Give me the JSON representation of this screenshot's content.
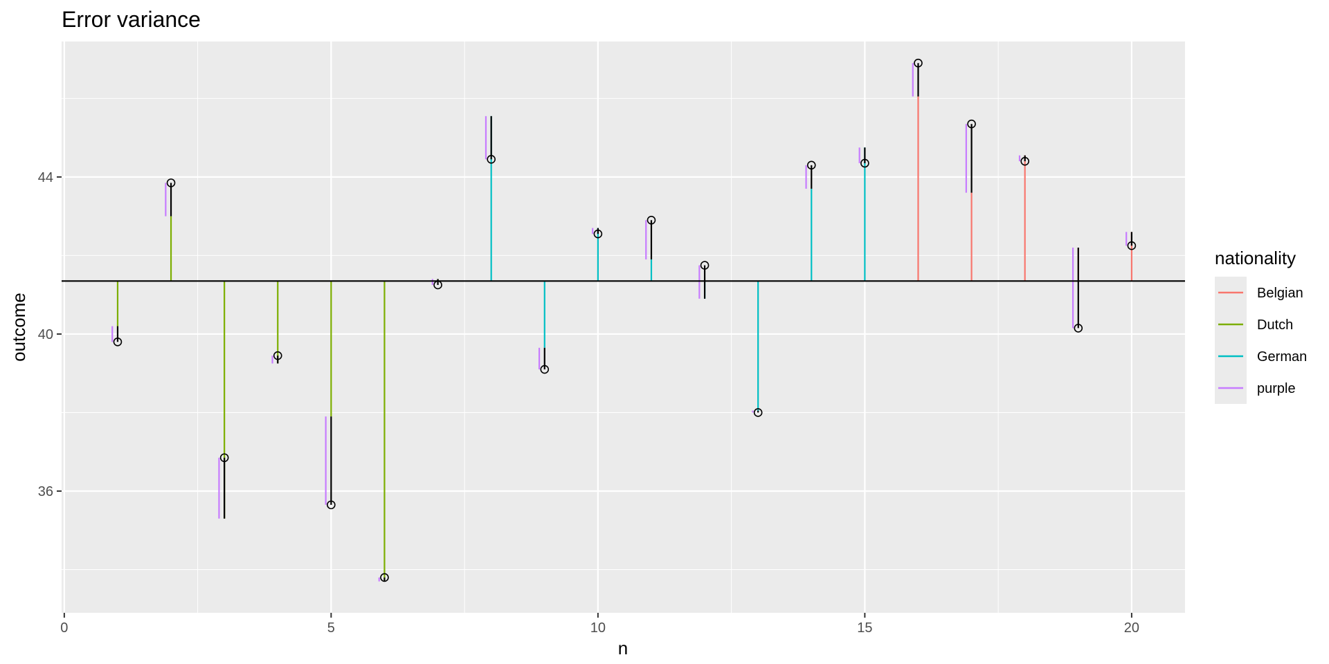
{
  "chart_data": {
    "type": "line",
    "title": "Error variance",
    "xlabel": "n",
    "ylabel": "outcome",
    "xlim": [
      -0.05,
      21.0
    ],
    "ylim": [
      32.9,
      47.45
    ],
    "x_ticks": [
      0,
      5,
      10,
      15,
      20
    ],
    "x_tick_labels": [
      "0",
      "5",
      "10",
      "15",
      "20"
    ],
    "y_ticks": [
      36,
      40,
      44
    ],
    "y_tick_labels": [
      "36",
      "40",
      "44"
    ],
    "grand_mean": 41.35,
    "grid": true,
    "legend": {
      "title": "nationality",
      "placement": "right",
      "entries": [
        {
          "label": "Belgian",
          "color": "#F8766D"
        },
        {
          "label": "Dutch",
          "color": "#7CAE00"
        },
        {
          "label": "German",
          "color": "#00BFC4"
        },
        {
          "label": "purple",
          "color": "#C77CFF"
        }
      ]
    },
    "points": [
      {
        "n": 1,
        "nationality": "Dutch",
        "group_mean": 40.2,
        "outcome": 39.8
      },
      {
        "n": 2,
        "nationality": "Dutch",
        "group_mean": 43.0,
        "outcome": 43.85
      },
      {
        "n": 3,
        "nationality": "Dutch",
        "group_mean": 35.3,
        "outcome": 36.85
      },
      {
        "n": 4,
        "nationality": "Dutch",
        "group_mean": 39.25,
        "outcome": 39.45
      },
      {
        "n": 5,
        "nationality": "Dutch",
        "group_mean": 37.9,
        "outcome": 35.65
      },
      {
        "n": 6,
        "nationality": "Dutch",
        "group_mean": 33.7,
        "outcome": 33.8
      },
      {
        "n": 7,
        "nationality": "Dutch",
        "group_mean": 41.4,
        "outcome": 41.25
      },
      {
        "n": 8,
        "nationality": "German",
        "group_mean": 45.55,
        "outcome": 44.45
      },
      {
        "n": 9,
        "nationality": "German",
        "group_mean": 39.65,
        "outcome": 39.1
      },
      {
        "n": 10,
        "nationality": "German",
        "group_mean": 42.7,
        "outcome": 42.55
      },
      {
        "n": 11,
        "nationality": "German",
        "group_mean": 41.9,
        "outcome": 42.9
      },
      {
        "n": 12,
        "nationality": "German",
        "group_mean": 40.9,
        "outcome": 41.75
      },
      {
        "n": 13,
        "nationality": "German",
        "group_mean": 38.05,
        "outcome": 38.0
      },
      {
        "n": 14,
        "nationality": "German",
        "group_mean": 43.7,
        "outcome": 44.3
      },
      {
        "n": 15,
        "nationality": "German",
        "group_mean": 44.75,
        "outcome": 44.35
      },
      {
        "n": 16,
        "nationality": "Belgian",
        "group_mean": 46.05,
        "outcome": 46.9
      },
      {
        "n": 17,
        "nationality": "Belgian",
        "group_mean": 43.6,
        "outcome": 45.35
      },
      {
        "n": 18,
        "nationality": "Belgian",
        "group_mean": 44.55,
        "outcome": 44.4
      },
      {
        "n": 19,
        "nationality": "Belgian",
        "group_mean": 42.2,
        "outcome": 40.15
      },
      {
        "n": 20,
        "nationality": "Belgian",
        "group_mean": 42.6,
        "outcome": 42.25
      }
    ]
  }
}
